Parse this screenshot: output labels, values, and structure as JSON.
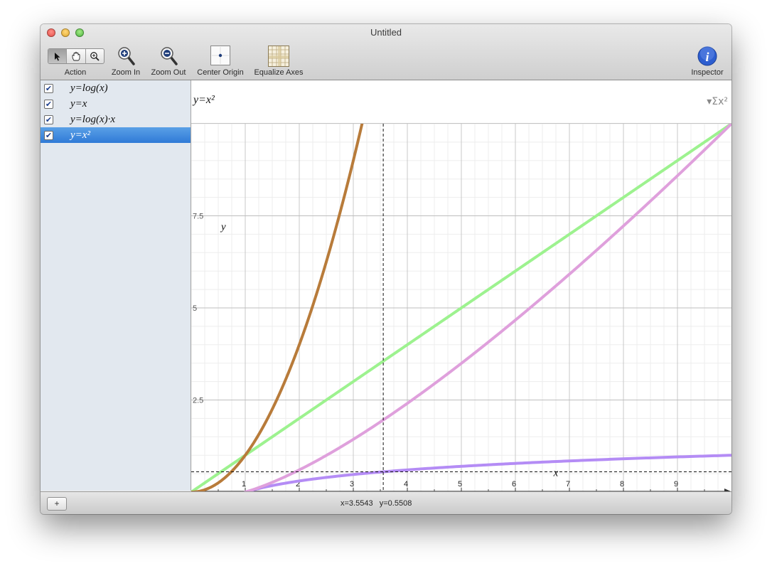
{
  "window": {
    "title": "Untitled"
  },
  "toolbar": {
    "action_label": "Action",
    "zoom_in_label": "Zoom In",
    "zoom_out_label": "Zoom Out",
    "center_origin_label": "Center Origin",
    "equalize_axes_label": "Equalize Axes",
    "inspector_label": "Inspector",
    "selected_tool": "arrow"
  },
  "sidebar": {
    "equations": [
      {
        "text": "y=log(x)",
        "checked": true,
        "color": "#b48cf5"
      },
      {
        "text": "y=x",
        "checked": true,
        "color": "#9df28f"
      },
      {
        "text": "y=log(x)·x",
        "checked": true,
        "color": "#dfa0dc"
      },
      {
        "text": "y=x²",
        "checked": true,
        "color": "#b87b3a",
        "selected": true
      }
    ]
  },
  "editor": {
    "equation": "y=x²"
  },
  "plot": {
    "x_axis_label": "x",
    "y_axis_label": "y",
    "x_ticks": [
      "1",
      "2",
      "3",
      "4",
      "5",
      "6",
      "7",
      "8",
      "9"
    ],
    "y_ticks": [
      "2.5",
      "5",
      "7.5"
    ],
    "cursor": {
      "x": 3.5543,
      "y": 0.5508
    }
  },
  "status": {
    "coords": "x=3.5543   y=0.5508"
  },
  "chart_data": {
    "type": "line",
    "xlabel": "x",
    "ylabel": "y",
    "xlim": [
      0,
      10
    ],
    "ylim": [
      0,
      10
    ],
    "grid": true,
    "series": [
      {
        "name": "y=log(x)",
        "color": "#b48cf5",
        "x": [
          1,
          2,
          3,
          4,
          5,
          6,
          7,
          8,
          9,
          10
        ],
        "y": [
          0,
          0.301,
          0.477,
          0.602,
          0.699,
          0.778,
          0.845,
          0.903,
          0.954,
          1.0
        ]
      },
      {
        "name": "y=x",
        "color": "#9df28f",
        "x": [
          0,
          10
        ],
        "y": [
          0,
          10
        ]
      },
      {
        "name": "y=log(x)·x",
        "color": "#dfa0dc",
        "x": [
          1,
          2,
          3,
          4,
          5,
          6,
          7,
          8,
          9,
          10
        ],
        "y": [
          0,
          0.602,
          1.431,
          2.408,
          3.495,
          4.669,
          5.916,
          7.225,
          8.588,
          10.0
        ]
      },
      {
        "name": "y=x²",
        "color": "#b87b3a",
        "x": [
          0,
          0.5,
          1,
          1.5,
          2,
          2.5,
          3,
          3.16
        ],
        "y": [
          0,
          0.25,
          1,
          2.25,
          4,
          6.25,
          9,
          10
        ]
      }
    ]
  }
}
